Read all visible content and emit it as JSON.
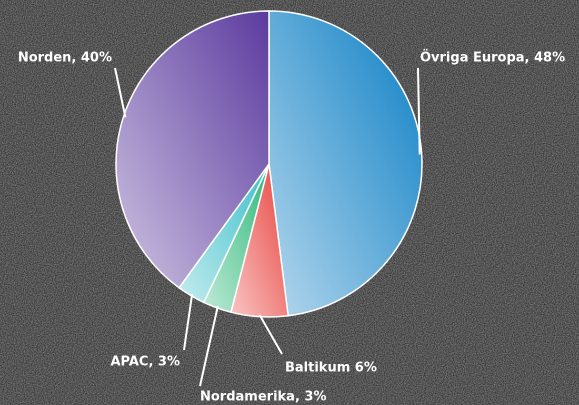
{
  "chart_data": {
    "type": "pie",
    "values": [
      48,
      6,
      3,
      3,
      40
    ],
    "value_labels": [
      "Övriga Europa, 48%",
      "Baltikum 6%",
      "Nordamerika, 3%",
      "APAC, 3%",
      "Norden, 40%"
    ],
    "colors": [
      "#0a7ec4",
      "#e8413c",
      "#2db87a",
      "#3bbfc9",
      "#5b3a9e"
    ]
  }
}
